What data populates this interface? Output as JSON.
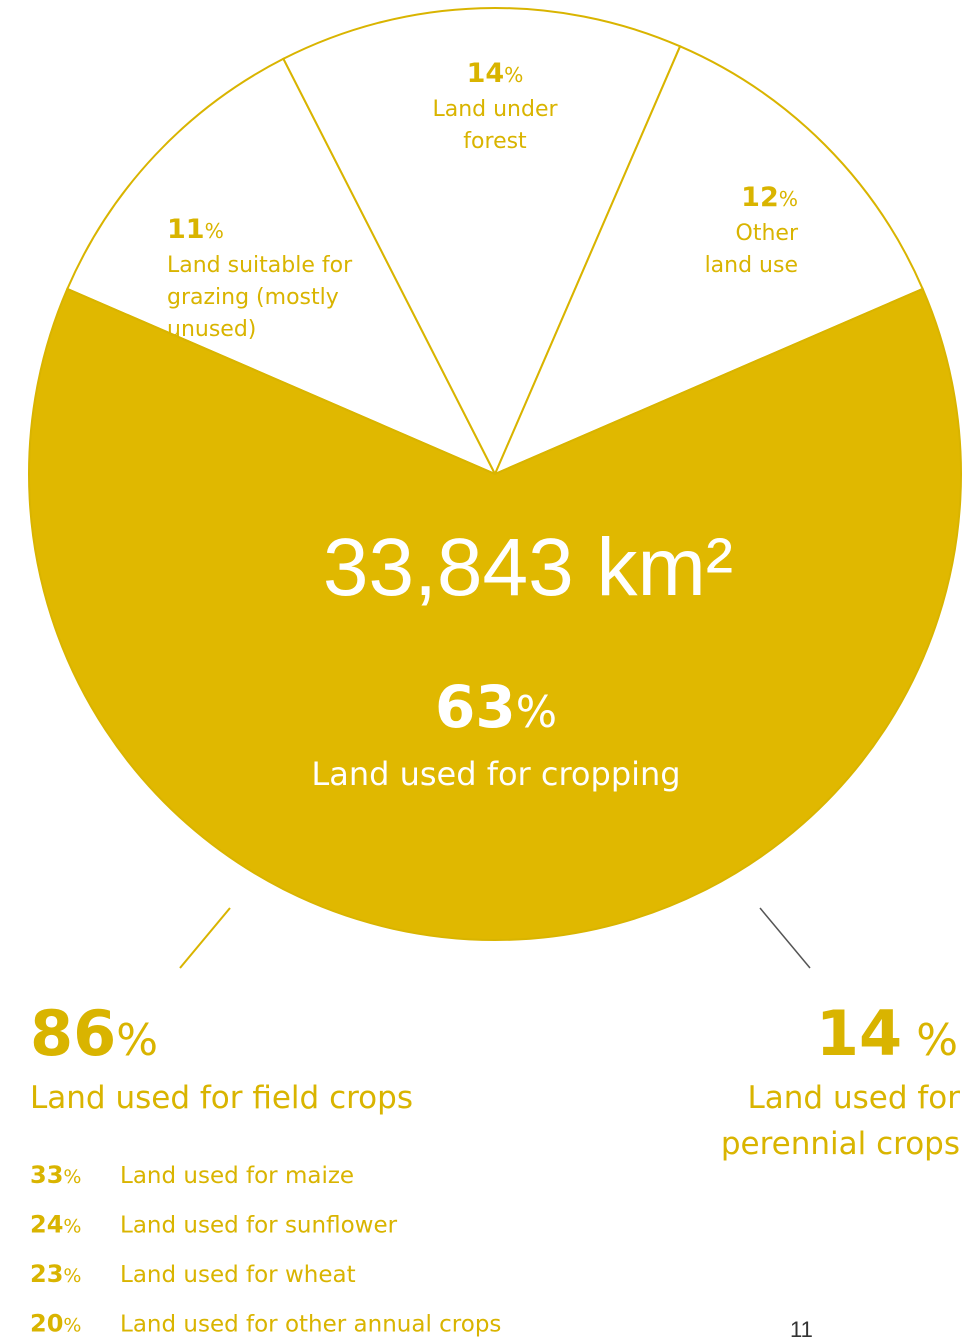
{
  "chart_data": {
    "type": "pie",
    "total_label": "33,843 km²",
    "categories": [
      "Land suitable for\ngrazing (mostly\nunused)",
      "Land under\nforest",
      "Other\nland use",
      "Land used for cropping"
    ],
    "values": [
      11,
      14,
      12,
      63
    ],
    "value_labels": [
      "11%",
      "14%",
      "12%",
      "63%"
    ],
    "colors": [
      "#ffffff",
      "#ffffff",
      "#ffffff",
      "#e0b800"
    ],
    "breakdown": [
      {
        "value_label": "86%",
        "label": "Land used for field crops",
        "items": [
          {
            "value_label": "33%",
            "label": "Land used for maize"
          },
          {
            "value_label": "24%",
            "label": "Land used for sunflower"
          },
          {
            "value_label": "23%",
            "label": "Land used for wheat"
          },
          {
            "value_label": "20%",
            "label": "Land used for other annual crops"
          }
        ]
      },
      {
        "value_label": "14 %",
        "label": "Land used for\nperennial crops"
      }
    ],
    "page_number": "11"
  }
}
